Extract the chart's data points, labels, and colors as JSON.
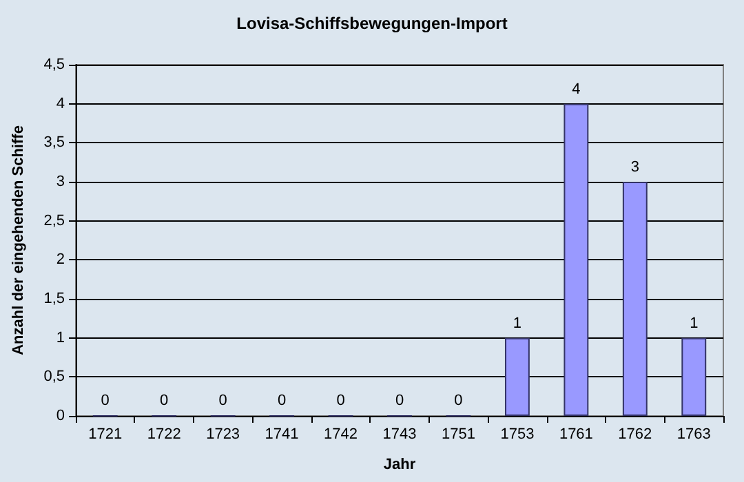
{
  "chart_data": {
    "type": "bar",
    "title": "Lovisa-Schiffsbewegungen-Import",
    "xlabel": "Jahr",
    "ylabel": "Anzahl der eingehenden Schiffe",
    "categories": [
      "1721",
      "1722",
      "1723",
      "1741",
      "1742",
      "1743",
      "1751",
      "1753",
      "1761",
      "1762",
      "1763"
    ],
    "values": [
      0,
      0,
      0,
      0,
      0,
      0,
      0,
      1,
      4,
      3,
      1
    ],
    "color": "#9999ff",
    "ylim": [
      0,
      4.5
    ],
    "yticks": [
      0,
      {
        "value": 0.5,
        "label": "0,5"
      },
      1,
      {
        "value": 1.5,
        "label": "1,5"
      },
      2,
      {
        "value": 2.5,
        "label": "2,5"
      },
      3,
      {
        "value": 3.5,
        "label": "3,5"
      },
      4,
      {
        "value": 4.5,
        "label": "4,5"
      }
    ],
    "grid": "y",
    "data_labels": true
  }
}
